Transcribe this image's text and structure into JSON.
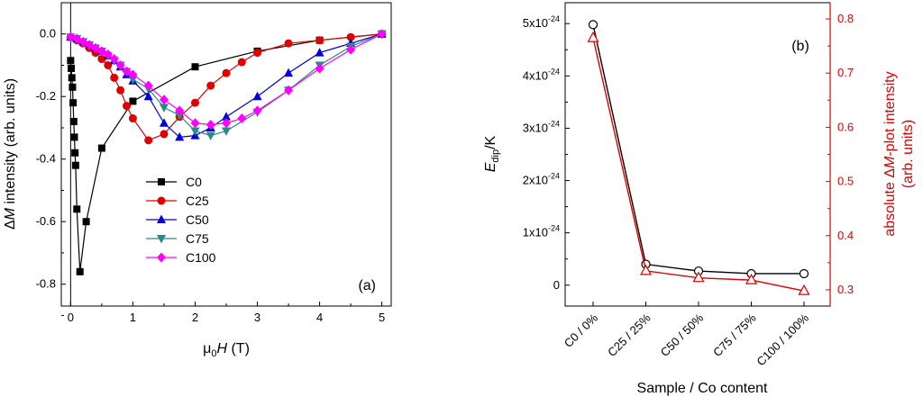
{
  "chart_data": [
    {
      "type": "line",
      "panel_label": "(a)",
      "xlabel_prefix": "μ",
      "xlabel_sub": "0",
      "xlabel_var": "H",
      "xlabel_unit": " (T)",
      "ylabel_prefix": "Δ",
      "ylabel_var": "M",
      "ylabel_rest": " intensity (arb. units)",
      "xlim": [
        -0.15,
        5.15
      ],
      "ylim": [
        -0.87,
        0.1
      ],
      "xticks": [
        0,
        1,
        2,
        3,
        4,
        5
      ],
      "yticks": [
        0.0,
        -0.2,
        -0.4,
        -0.6,
        -0.8
      ],
      "ytick_labels": [
        "0.0",
        "-0.2",
        "-0.4",
        "-0.6",
        "-0.8"
      ],
      "legend_position": "center-left",
      "series": [
        {
          "name": "C0",
          "color": "#000000",
          "marker": "square",
          "x": [
            0.0,
            0.01,
            0.02,
            0.03,
            0.04,
            0.05,
            0.06,
            0.07,
            0.08,
            0.1,
            0.15,
            0.25,
            0.5,
            1.0,
            2.0,
            3.0,
            4.0,
            5.0
          ],
          "y": [
            -0.085,
            -0.11,
            -0.14,
            -0.17,
            -0.22,
            -0.28,
            -0.33,
            -0.38,
            -0.42,
            -0.56,
            -0.76,
            -0.6,
            -0.365,
            -0.215,
            -0.105,
            -0.055,
            -0.02,
            0.0
          ]
        },
        {
          "name": "C25",
          "color": "#e00000",
          "marker": "circle",
          "x": [
            0.0,
            0.1,
            0.2,
            0.3,
            0.4,
            0.5,
            0.6,
            0.7,
            0.8,
            0.9,
            1.0,
            1.25,
            1.5,
            1.75,
            2.0,
            2.25,
            2.5,
            2.75,
            3.0,
            3.5,
            4.0,
            4.5,
            5.0
          ],
          "y": [
            -0.01,
            -0.02,
            -0.03,
            -0.045,
            -0.06,
            -0.08,
            -0.1,
            -0.14,
            -0.18,
            -0.23,
            -0.27,
            -0.34,
            -0.32,
            -0.265,
            -0.22,
            -0.165,
            -0.125,
            -0.09,
            -0.06,
            -0.03,
            -0.02,
            -0.01,
            0.0
          ]
        },
        {
          "name": "C50",
          "color": "#0000e0",
          "marker": "triangle-up",
          "x": [
            0.0,
            0.1,
            0.2,
            0.3,
            0.4,
            0.5,
            0.6,
            0.7,
            0.8,
            0.9,
            1.0,
            1.25,
            1.5,
            1.75,
            2.0,
            2.25,
            2.5,
            3.0,
            3.5,
            4.0,
            4.5,
            5.0
          ],
          "y": [
            -0.01,
            -0.015,
            -0.025,
            -0.035,
            -0.045,
            -0.055,
            -0.07,
            -0.085,
            -0.105,
            -0.13,
            -0.15,
            -0.2,
            -0.285,
            -0.33,
            -0.325,
            -0.3,
            -0.265,
            -0.2,
            -0.125,
            -0.06,
            -0.03,
            0.0
          ]
        },
        {
          "name": "C75",
          "color": "#2a8a8a",
          "marker": "triangle-down",
          "x": [
            0.0,
            0.1,
            0.2,
            0.3,
            0.4,
            0.5,
            0.6,
            0.7,
            0.8,
            0.9,
            1.0,
            1.25,
            1.5,
            1.75,
            2.0,
            2.25,
            2.5,
            3.0,
            3.5,
            4.0,
            4.5,
            5.0
          ],
          "y": [
            -0.01,
            -0.015,
            -0.025,
            -0.035,
            -0.045,
            -0.055,
            -0.07,
            -0.085,
            -0.1,
            -0.12,
            -0.145,
            -0.175,
            -0.235,
            -0.26,
            -0.31,
            -0.325,
            -0.31,
            -0.25,
            -0.18,
            -0.1,
            -0.04,
            0.0
          ]
        },
        {
          "name": "C100",
          "color": "#ff00ff",
          "marker": "diamond",
          "x": [
            0.0,
            0.1,
            0.2,
            0.3,
            0.4,
            0.5,
            0.6,
            0.7,
            0.8,
            0.9,
            1.0,
            1.25,
            1.5,
            1.75,
            2.0,
            2.25,
            2.5,
            2.75,
            3.0,
            3.5,
            4.0,
            4.5,
            5.0
          ],
          "y": [
            -0.01,
            -0.015,
            -0.025,
            -0.035,
            -0.045,
            -0.055,
            -0.065,
            -0.08,
            -0.1,
            -0.12,
            -0.13,
            -0.165,
            -0.21,
            -0.245,
            -0.285,
            -0.29,
            -0.285,
            -0.27,
            -0.245,
            -0.18,
            -0.11,
            -0.05,
            0.0
          ]
        }
      ]
    },
    {
      "type": "line",
      "panel_label": "(b)",
      "xlabel": "Sample / Co content",
      "ylabel_left_var": "E",
      "ylabel_left_sub": "dip",
      "ylabel_left_rest": "/K",
      "ylabel_right_prefix": "absolute Δ",
      "ylabel_right_var": "M",
      "ylabel_right_rest": "-plot intensity",
      "ylabel_right_line2": "(arb. units)",
      "categories": [
        "C0 / 0%",
        "C25 / 25%",
        "C50 / 50%",
        "C75 / 75%",
        "C100 / 100%"
      ],
      "ylim_left": [
        -4e-25,
        5.4e-24
      ],
      "ylim_right": [
        0.27,
        0.83
      ],
      "yticks_left": [
        {
          "value": 0,
          "mantissa": "0",
          "exponent": ""
        },
        {
          "value": 1e-24,
          "mantissa": "1x10",
          "exponent": "-24"
        },
        {
          "value": 2e-24,
          "mantissa": "2x10",
          "exponent": "-24"
        },
        {
          "value": 3e-24,
          "mantissa": "3x10",
          "exponent": "-24"
        },
        {
          "value": 4e-24,
          "mantissa": "4x10",
          "exponent": "-24"
        },
        {
          "value": 5e-24,
          "mantissa": "5x10",
          "exponent": "-24"
        }
      ],
      "yticks_right": [
        0.3,
        0.4,
        0.5,
        0.6,
        0.7,
        0.8
      ],
      "ytick_labels_right": [
        "0.3",
        "0.4",
        "0.5",
        "0.6",
        "0.7",
        "0.8"
      ],
      "series": [
        {
          "axis": "left",
          "color": "#000000",
          "marker": "circle-open",
          "values": [
            4.98e-24,
            4e-25,
            2.7e-25,
            2.2e-25,
            2.2e-25
          ]
        },
        {
          "axis": "right",
          "color": "#e00000",
          "marker": "triangle-open",
          "values": [
            0.765,
            0.335,
            0.322,
            0.318,
            0.298
          ]
        }
      ]
    }
  ]
}
